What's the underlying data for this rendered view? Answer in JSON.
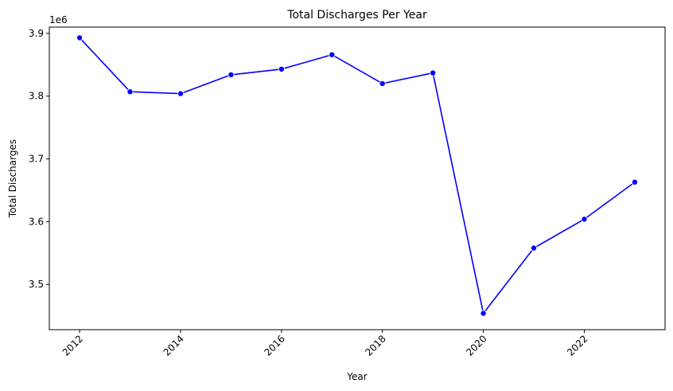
{
  "chart_data": {
    "type": "line",
    "title": "Total Discharges Per Year",
    "xlabel": "Year",
    "ylabel": "Total Discharges",
    "y_offset_label": "1e6",
    "y_multiplier": 1000000,
    "xlim": [
      2011.4,
      2023.6
    ],
    "ylim": [
      3.428,
      3.91
    ],
    "x_ticks": [
      2012,
      2014,
      2016,
      2018,
      2020,
      2022
    ],
    "y_ticks": [
      3.5,
      3.6,
      3.7,
      3.8,
      3.9
    ],
    "grid": false,
    "line_color": "#0000ff",
    "marker": "circle",
    "series": [
      {
        "x": [
          2012,
          2013,
          2014,
          2015,
          2016,
          2017,
          2018,
          2019,
          2020,
          2021,
          2022,
          2023
        ],
        "values": [
          3.893,
          3.807,
          3.804,
          3.834,
          3.843,
          3.866,
          3.82,
          3.837,
          3.454,
          3.558,
          3.604,
          3.663
        ]
      }
    ]
  }
}
